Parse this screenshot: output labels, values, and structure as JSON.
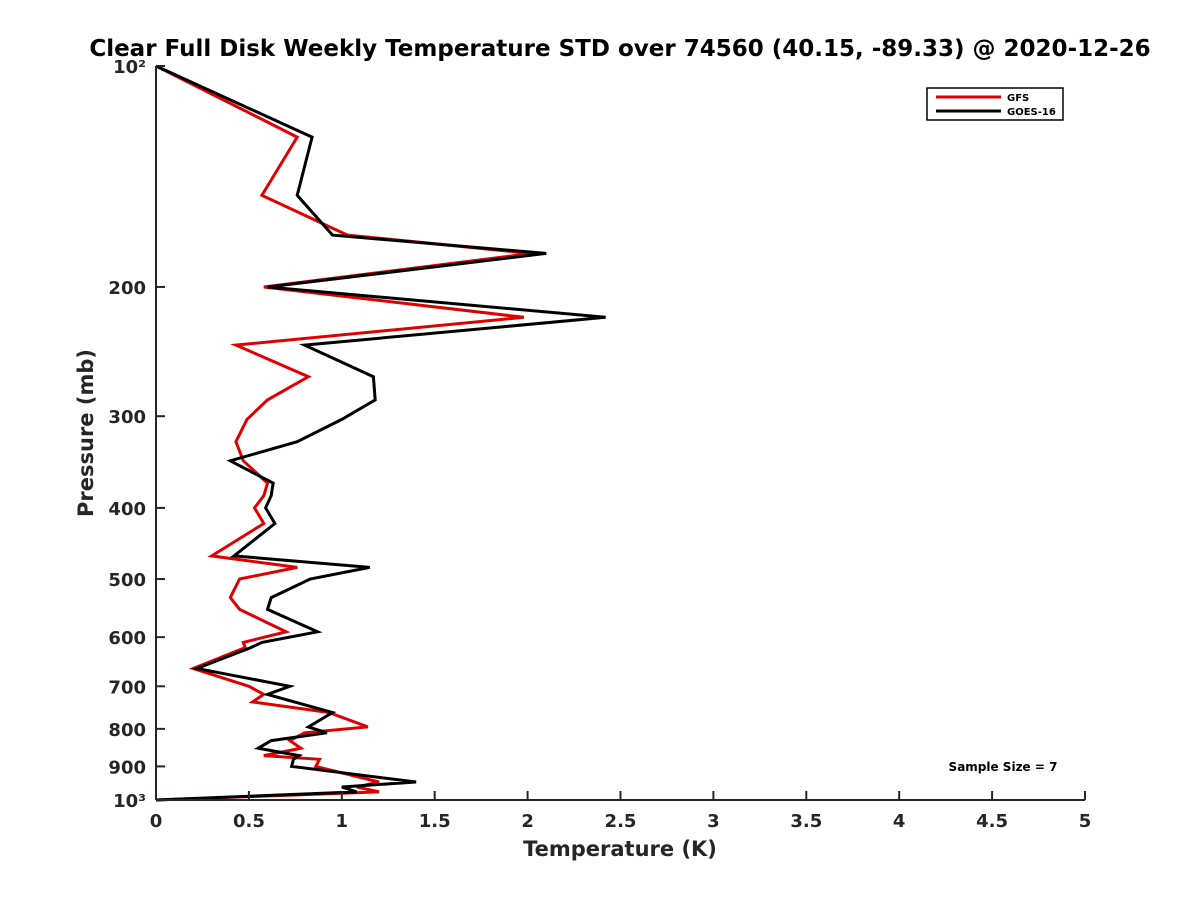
{
  "chart_data": {
    "type": "line",
    "title": "Clear Full Disk Weekly Temperature STD over 74560 (40.15, -89.33) @ 2020-12-26",
    "xlabel": "Temperature (K)",
    "ylabel": "Pressure (mb)",
    "xlim": [
      0,
      5
    ],
    "ylim": [
      100,
      1000
    ],
    "y_scale": "log",
    "y_reversed": true,
    "grid": false,
    "legend_position": "top-right",
    "x_ticks": [
      0,
      0.5,
      1,
      1.5,
      2,
      2.5,
      3,
      3.5,
      4,
      4.5,
      5
    ],
    "x_tick_labels": [
      "0",
      "0.5",
      "1",
      "1.5",
      "2",
      "2.5",
      "3",
      "3.5",
      "4",
      "4.5",
      "5"
    ],
    "y_ticks": [
      100,
      200,
      300,
      400,
      500,
      600,
      700,
      800,
      900,
      1000
    ],
    "y_tick_labels": [
      "10²",
      "200",
      "300",
      "400",
      "500",
      "600",
      "700",
      "800",
      "900",
      "10³"
    ],
    "annotation": "Sample Size = 7",
    "series": [
      {
        "name": "GFS",
        "color": "#e00000",
        "points": [
          [
            0.0,
            100
          ],
          [
            0.76,
            125
          ],
          [
            0.57,
            150
          ],
          [
            1.03,
            170
          ],
          [
            2.02,
            180
          ],
          [
            0.58,
            200
          ],
          [
            1.98,
            220
          ],
          [
            0.43,
            240
          ],
          [
            0.82,
            265
          ],
          [
            0.6,
            285
          ],
          [
            0.49,
            303
          ],
          [
            0.43,
            325
          ],
          [
            0.47,
            345
          ],
          [
            0.6,
            370
          ],
          [
            0.58,
            385
          ],
          [
            0.53,
            400
          ],
          [
            0.58,
            420
          ],
          [
            0.3,
            465
          ],
          [
            0.76,
            482
          ],
          [
            0.45,
            500
          ],
          [
            0.4,
            530
          ],
          [
            0.45,
            550
          ],
          [
            0.7,
            590
          ],
          [
            0.47,
            610
          ],
          [
            0.48,
            620
          ],
          [
            0.2,
            662
          ],
          [
            0.5,
            700
          ],
          [
            0.58,
            718
          ],
          [
            0.52,
            735
          ],
          [
            0.93,
            760
          ],
          [
            1.14,
            795
          ],
          [
            0.8,
            810
          ],
          [
            0.72,
            830
          ],
          [
            0.78,
            850
          ],
          [
            0.58,
            870
          ],
          [
            0.88,
            880
          ],
          [
            0.86,
            900
          ],
          [
            1.2,
            945
          ],
          [
            1.08,
            960
          ],
          [
            1.2,
            975
          ],
          [
            0.0,
            1000
          ]
        ]
      },
      {
        "name": "GOES-16",
        "color": "#000000",
        "points": [
          [
            0.0,
            100
          ],
          [
            0.84,
            125
          ],
          [
            0.76,
            150
          ],
          [
            0.95,
            170
          ],
          [
            2.1,
            180
          ],
          [
            0.6,
            200
          ],
          [
            2.42,
            220
          ],
          [
            0.8,
            240
          ],
          [
            1.17,
            265
          ],
          [
            1.18,
            285
          ],
          [
            1.0,
            303
          ],
          [
            0.76,
            325
          ],
          [
            0.4,
            345
          ],
          [
            0.63,
            370
          ],
          [
            0.62,
            385
          ],
          [
            0.59,
            400
          ],
          [
            0.64,
            420
          ],
          [
            0.42,
            465
          ],
          [
            1.15,
            482
          ],
          [
            0.83,
            500
          ],
          [
            0.62,
            530
          ],
          [
            0.6,
            550
          ],
          [
            0.87,
            590
          ],
          [
            0.57,
            610
          ],
          [
            0.51,
            620
          ],
          [
            0.22,
            662
          ],
          [
            0.72,
            700
          ],
          [
            0.6,
            718
          ],
          [
            0.95,
            760
          ],
          [
            0.82,
            795
          ],
          [
            0.92,
            810
          ],
          [
            0.62,
            830
          ],
          [
            0.55,
            850
          ],
          [
            0.77,
            870
          ],
          [
            0.74,
            880
          ],
          [
            0.73,
            900
          ],
          [
            1.4,
            945
          ],
          [
            1.0,
            960
          ],
          [
            1.08,
            975
          ],
          [
            0.0,
            1000
          ]
        ]
      }
    ]
  }
}
